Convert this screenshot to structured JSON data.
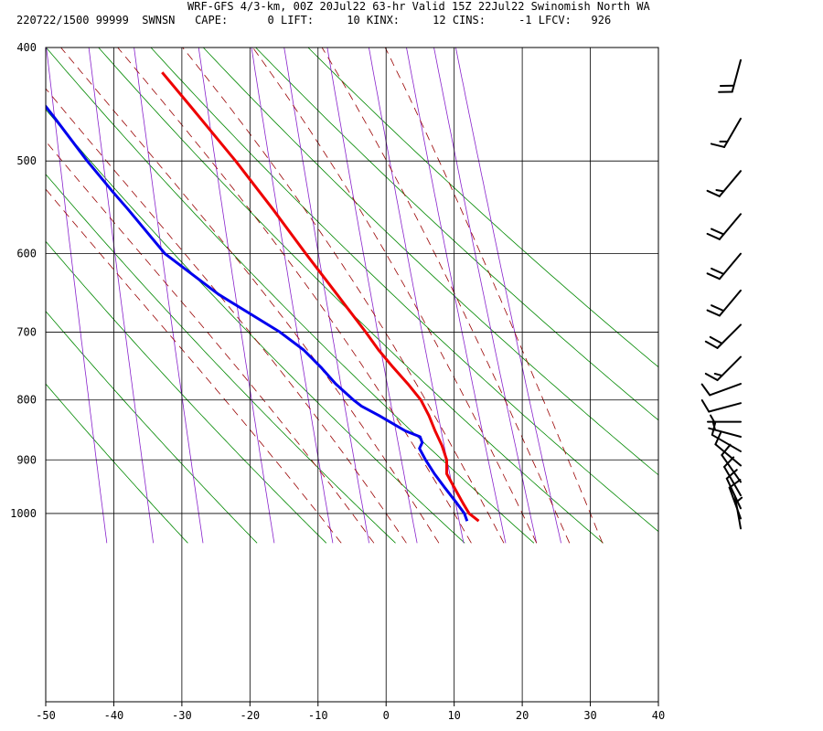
{
  "header": {
    "line1": "WRF-GFS 4/3-km, 00Z 20Jul22 63-hr Valid 15Z 22Jul22 Swinomish North WA",
    "line2": "220722/1500 99999  SWNSN   CAPE:      0 LIFT:     10 KINX:     12 CINS:     -1 LFCV:   926"
  },
  "colors": {
    "temperature": "#ee0000",
    "dewpoint": "#0000ee",
    "isotherm": "#000000",
    "isobar": "#000000",
    "dry_adiabat": "#008800",
    "moist_adiabat": "#990000",
    "mixing_ratio": "#8822cc",
    "wind_barb": "#000000"
  },
  "chart_data": {
    "type": "skew-t",
    "xlabel": "",
    "ylabel": "",
    "x_ticks": [
      -50,
      -40,
      -30,
      -20,
      -10,
      0,
      10,
      20,
      30,
      40
    ],
    "pressure_ticks": [
      400,
      500,
      600,
      700,
      800,
      900,
      1000
    ],
    "pressure_range": [
      1040,
      400
    ],
    "temperature_profile": [
      {
        "p": 1015,
        "t": 13.6
      },
      {
        "p": 1000,
        "t": 12.2
      },
      {
        "p": 980,
        "t": 11.3
      },
      {
        "p": 950,
        "t": 10.0
      },
      {
        "p": 925,
        "t": 8.9
      },
      {
        "p": 900,
        "t": 8.9
      },
      {
        "p": 875,
        "t": 8.2
      },
      {
        "p": 850,
        "t": 7.2
      },
      {
        "p": 825,
        "t": 6.3
      },
      {
        "p": 800,
        "t": 5.1
      },
      {
        "p": 775,
        "t": 3.2
      },
      {
        "p": 750,
        "t": 1.0
      },
      {
        "p": 725,
        "t": -1.1
      },
      {
        "p": 700,
        "t": -3.0
      },
      {
        "p": 650,
        "t": -7.2
      },
      {
        "p": 600,
        "t": -11.8
      },
      {
        "p": 550,
        "t": -16.6
      },
      {
        "p": 500,
        "t": -22.1
      },
      {
        "p": 450,
        "t": -28.6
      },
      {
        "p": 420,
        "t": -32.9
      }
    ],
    "dewpoint_profile": [
      {
        "p": 1015,
        "t": 11.9
      },
      {
        "p": 1000,
        "t": 11.5
      },
      {
        "p": 980,
        "t": 10.4
      },
      {
        "p": 950,
        "t": 8.6
      },
      {
        "p": 925,
        "t": 7.1
      },
      {
        "p": 900,
        "t": 5.8
      },
      {
        "p": 880,
        "t": 4.9
      },
      {
        "p": 870,
        "t": 5.3
      },
      {
        "p": 860,
        "t": 5.0
      },
      {
        "p": 850,
        "t": 2.8
      },
      {
        "p": 825,
        "t": -1.0
      },
      {
        "p": 810,
        "t": -3.6
      },
      {
        "p": 800,
        "t": -4.8
      },
      {
        "p": 775,
        "t": -7.4
      },
      {
        "p": 750,
        "t": -9.6
      },
      {
        "p": 725,
        "t": -12.1
      },
      {
        "p": 700,
        "t": -15.6
      },
      {
        "p": 650,
        "t": -24.6
      },
      {
        "p": 600,
        "t": -32.5
      },
      {
        "p": 550,
        "t": -37.9
      },
      {
        "p": 530,
        "t": -40.3
      },
      {
        "p": 500,
        "t": -43.9
      },
      {
        "p": 460,
        "t": -48.6
      },
      {
        "p": 420,
        "t": -53.9
      }
    ],
    "winds": [
      {
        "p": 410,
        "dir": 195,
        "spd": 20
      },
      {
        "p": 460,
        "dir": 210,
        "spd": 15
      },
      {
        "p": 510,
        "dir": 220,
        "spd": 15
      },
      {
        "p": 555,
        "dir": 220,
        "spd": 20
      },
      {
        "p": 600,
        "dir": 220,
        "spd": 20
      },
      {
        "p": 645,
        "dir": 220,
        "spd": 20
      },
      {
        "p": 690,
        "dir": 225,
        "spd": 20
      },
      {
        "p": 735,
        "dir": 225,
        "spd": 15
      },
      {
        "p": 775,
        "dir": 250,
        "spd": 10
      },
      {
        "p": 805,
        "dir": 255,
        "spd": 10
      },
      {
        "p": 835,
        "dir": 270,
        "spd": 5
      },
      {
        "p": 860,
        "dir": 285,
        "spd": 5
      },
      {
        "p": 885,
        "dir": 300,
        "spd": 10
      },
      {
        "p": 910,
        "dir": 310,
        "spd": 10
      },
      {
        "p": 940,
        "dir": 325,
        "spd": 10
      },
      {
        "p": 965,
        "dir": 330,
        "spd": 10
      },
      {
        "p": 990,
        "dir": 335,
        "spd": 10
      },
      {
        "p": 1010,
        "dir": 340,
        "spd": 10
      },
      {
        "p": 1030,
        "dir": 350,
        "spd": 5
      }
    ],
    "isotherms": [
      -50,
      -40,
      -30,
      -20,
      -10,
      0,
      10,
      20,
      30,
      40
    ],
    "dry_adiabats_theta_k": [
      240,
      250,
      260,
      270,
      280,
      290,
      300,
      310,
      320,
      330,
      340
    ],
    "moist_adiabats_c": [
      -10,
      -5,
      0,
      5,
      10,
      15,
      20,
      25,
      30
    ],
    "mixing_ratio_lines_gkg": [
      0.1,
      0.2,
      0.4,
      1,
      2,
      3,
      5,
      8,
      12,
      16,
      20
    ]
  }
}
